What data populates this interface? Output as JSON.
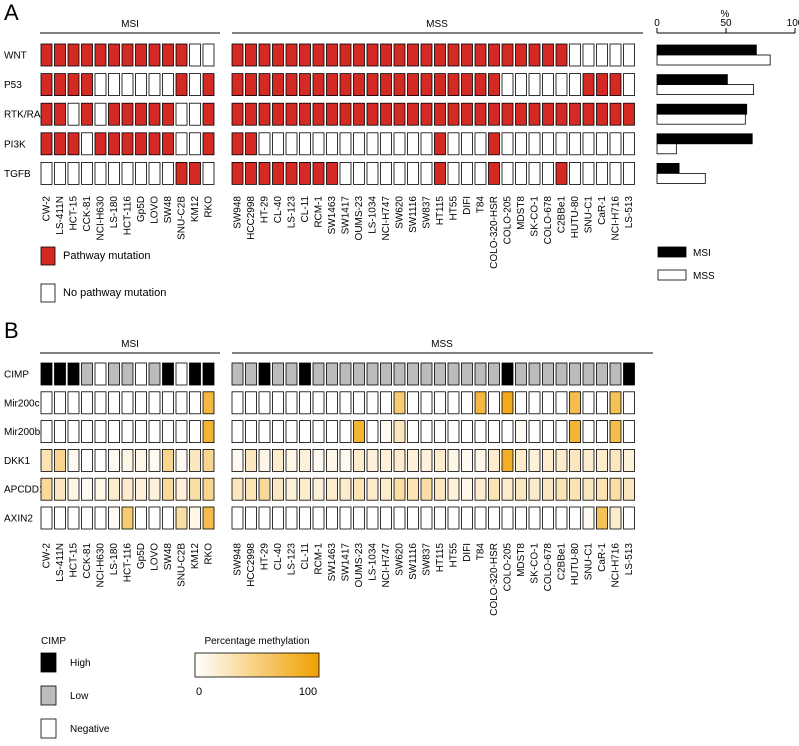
{
  "panel_a": {
    "letter": "A",
    "group_msi": "MSI",
    "group_mss": "MSS",
    "rows": [
      "WNT",
      "P53",
      "RTK/RAS",
      "PI3K",
      "TGFB"
    ],
    "cell_lines_msi": [
      "CW-2",
      "LS-411N",
      "HCT-15",
      "CCK-81",
      "NCI-H630",
      "LS-180",
      "HCT-116",
      "Gp5D",
      "LOVO",
      "SW48",
      "SNU-C2B",
      "KM12",
      "RKO"
    ],
    "cell_lines_mss": [
      "SW948",
      "HCC2998",
      "HT-29",
      "CL-40",
      "LS-123",
      "CL-11",
      "RCM-1",
      "SW1463",
      "SW1417",
      "OUMS-23",
      "LS-1034",
      "NCI-H747",
      "SW620",
      "SW1116",
      "SW837",
      "HT115",
      "HT55",
      "DIFI",
      "T84",
      "COLO-320-HSR",
      "COLO-205",
      "MDST8",
      "SK-CO-1",
      "COLO-678",
      "C2BBe1",
      "HUTU-80",
      "SNU-C1",
      "CaR-1",
      "NCI-H716",
      "LS-513"
    ],
    "mutation_msi": [
      [
        1,
        1,
        1,
        1,
        1,
        1,
        1,
        1,
        1,
        1,
        1,
        0,
        0
      ],
      [
        1,
        1,
        1,
        1,
        0,
        0,
        0,
        0,
        0,
        0,
        1,
        0,
        1
      ],
      [
        1,
        1,
        0,
        1,
        0,
        1,
        1,
        1,
        1,
        1,
        0,
        0,
        1
      ],
      [
        1,
        1,
        1,
        0,
        1,
        1,
        1,
        1,
        1,
        1,
        0,
        0,
        1
      ],
      [
        0,
        0,
        0,
        0,
        0,
        0,
        0,
        0,
        0,
        0,
        1,
        1,
        0
      ]
    ],
    "mutation_mss": [
      [
        1,
        1,
        1,
        1,
        1,
        1,
        1,
        1,
        1,
        1,
        1,
        1,
        1,
        1,
        1,
        1,
        1,
        1,
        1,
        1,
        1,
        1,
        1,
        1,
        1,
        0,
        0,
        0,
        0,
        0
      ],
      [
        1,
        1,
        1,
        1,
        1,
        1,
        1,
        1,
        1,
        1,
        1,
        1,
        1,
        1,
        1,
        1,
        1,
        1,
        1,
        1,
        0,
        0,
        0,
        0,
        0,
        0,
        1,
        1,
        1,
        0
      ],
      [
        1,
        1,
        1,
        1,
        1,
        1,
        1,
        1,
        1,
        1,
        1,
        1,
        1,
        1,
        1,
        1,
        1,
        1,
        1,
        1,
        1,
        1,
        1,
        1,
        1,
        1,
        1,
        1,
        1,
        1
      ],
      [
        1,
        1,
        0,
        0,
        0,
        0,
        0,
        0,
        0,
        0,
        0,
        0,
        0,
        0,
        0,
        1,
        0,
        0,
        0,
        1,
        0,
        0,
        0,
        0,
        0,
        0,
        0,
        0,
        0,
        0
      ],
      [
        1,
        1,
        1,
        1,
        1,
        1,
        1,
        1,
        0,
        0,
        0,
        0,
        0,
        0,
        0,
        1,
        0,
        0,
        0,
        1,
        0,
        0,
        0,
        0,
        1,
        0,
        0,
        0,
        0,
        0
      ]
    ],
    "legend_mutation": "Pathway mutation",
    "legend_no_mutation": "No pathway mutation",
    "bar_chart": {
      "type": "bar",
      "title": "%",
      "ticks": [
        "0",
        "50",
        "100"
      ],
      "xlim": [
        0,
        100
      ],
      "categories": [
        "WNT",
        "P53",
        "RTK/RAS",
        "PI3K",
        "TGFB"
      ],
      "series": [
        {
          "name": "MSI",
          "values": [
            72,
            51,
            65,
            69,
            16
          ]
        },
        {
          "name": "MSS",
          "values": [
            82,
            70,
            64,
            14,
            35
          ]
        }
      ],
      "legend_msi": "MSI",
      "legend_mss": "MSS"
    }
  },
  "panel_b": {
    "letter": "B",
    "group_msi": "MSI",
    "group_mss": "MSS",
    "rows": [
      "CIMP",
      "Mir200c",
      "Mir200ba",
      "DKK1",
      "APCDD1",
      "AXIN2"
    ],
    "cell_lines_msi": [
      "CW-2",
      "LS-411N",
      "HCT-15",
      "CCK-81",
      "NCI-H630",
      "LS-180",
      "HCT-116",
      "Gp5D",
      "LOVO",
      "SW48",
      "SNU-C2B",
      "KM12",
      "RKO"
    ],
    "cell_lines_mss": [
      "SW948",
      "HCC2998",
      "HT-29",
      "CL-40",
      "LS-123",
      "CL-11",
      "RCM-1",
      "SW1463",
      "SW1417",
      "OUMS-23",
      "LS-1034",
      "NCI-H747",
      "SW620",
      "SW1116",
      "SW837",
      "HT115",
      "HT55",
      "DIFI",
      "T84",
      "COLO-320-HSR",
      "COLO-205",
      "MDST8",
      "SK-CO-1",
      "COLO-678",
      "C2BBe1",
      "HUTU-80",
      "SNU-C1",
      "CaR-1",
      "NCI-H716",
      "LS-513"
    ],
    "cimp_msi": [
      "H",
      "H",
      "H",
      "L",
      "N",
      "L",
      "L",
      "N",
      "L",
      "H",
      "N",
      "H",
      "H"
    ],
    "cimp_mss": [
      "L",
      "L",
      "H",
      "L",
      "L",
      "H",
      "L",
      "L",
      "L",
      "L",
      "L",
      "L",
      "L",
      "L",
      "L",
      "L",
      "L",
      "L",
      "L",
      "L",
      "H",
      "L",
      "L",
      "L",
      "L",
      "L",
      "L",
      "L",
      "L",
      "H"
    ],
    "methylation_msi": [
      [
        0,
        0,
        0,
        0,
        0,
        0,
        0,
        0,
        0,
        0,
        0,
        0,
        75
      ],
      [
        0,
        0,
        0,
        0,
        0,
        0,
        0,
        0,
        0,
        0,
        0,
        0,
        80
      ],
      [
        30,
        45,
        5,
        0,
        0,
        5,
        10,
        10,
        5,
        45,
        5,
        25,
        45
      ],
      [
        40,
        25,
        10,
        5,
        10,
        20,
        20,
        15,
        15,
        40,
        15,
        35,
        45
      ],
      [
        0,
        0,
        0,
        0,
        0,
        5,
        55,
        0,
        0,
        0,
        35,
        10,
        70
      ]
    ],
    "methylation_mss": [
      [
        0,
        0,
        0,
        0,
        0,
        0,
        0,
        0,
        0,
        0,
        0,
        0,
        55,
        0,
        0,
        0,
        0,
        0,
        75,
        0,
        90,
        0,
        0,
        0,
        0,
        70,
        0,
        0,
        65,
        0
      ],
      [
        0,
        0,
        0,
        0,
        0,
        0,
        0,
        0,
        0,
        80,
        0,
        5,
        25,
        0,
        0,
        0,
        0,
        0,
        0,
        0,
        0,
        5,
        0,
        0,
        0,
        80,
        0,
        0,
        70,
        0
      ],
      [
        5,
        25,
        10,
        20,
        10,
        15,
        5,
        10,
        5,
        20,
        15,
        15,
        20,
        15,
        15,
        20,
        10,
        5,
        10,
        20,
        85,
        20,
        15,
        20,
        20,
        25,
        20,
        20,
        25,
        15
      ],
      [
        25,
        30,
        40,
        25,
        15,
        20,
        15,
        20,
        20,
        30,
        20,
        20,
        35,
        30,
        35,
        25,
        15,
        10,
        20,
        30,
        20,
        25,
        20,
        25,
        30,
        30,
        25,
        30,
        35,
        25
      ],
      [
        0,
        0,
        0,
        0,
        0,
        0,
        0,
        0,
        0,
        0,
        0,
        0,
        0,
        0,
        0,
        0,
        0,
        0,
        0,
        0,
        0,
        0,
        0,
        0,
        0,
        0,
        5,
        65,
        20,
        0
      ]
    ],
    "legend_cimp_title": "CIMP",
    "legend_high": "High",
    "legend_low": "Low",
    "legend_negative": "Negative",
    "legend_methylation_title": "Percentage methylation",
    "legend_min": "0",
    "legend_max": "100"
  },
  "colors": {
    "mutation": "#d42a23",
    "none": "#ffffff",
    "high": "#000000",
    "low": "#bcbcbc",
    "methyl_max": "#f0a000"
  }
}
